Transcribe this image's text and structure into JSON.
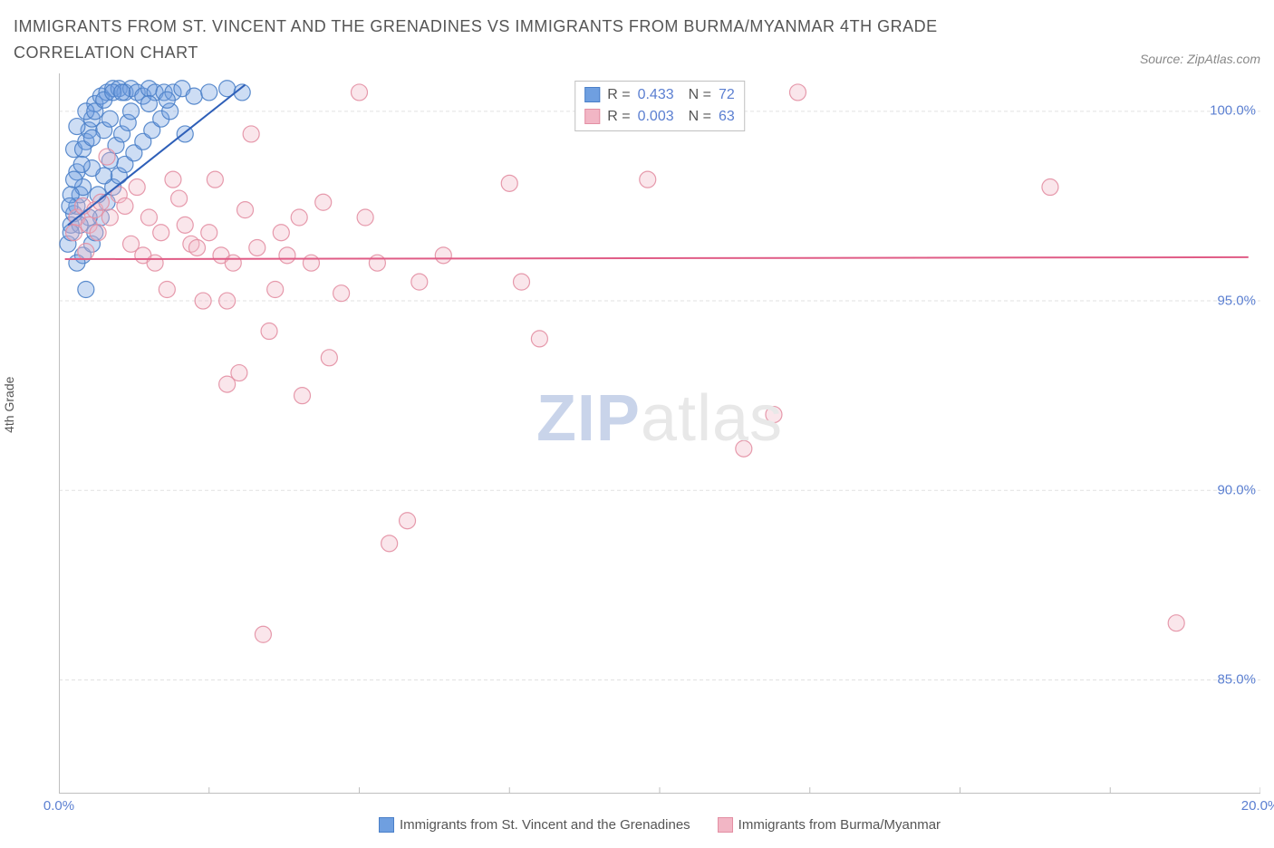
{
  "title": "IMMIGRANTS FROM ST. VINCENT AND THE GRENADINES VS IMMIGRANTS FROM BURMA/MYANMAR 4TH GRADE CORRELATION CHART",
  "source": "Source: ZipAtlas.com",
  "ylabel": "4th Grade",
  "watermark_a": "ZIP",
  "watermark_b": "atlas",
  "chart": {
    "type": "scatter",
    "background_color": "#ffffff",
    "grid_color": "#e2e2e2",
    "axis_color": "#bfbfbf",
    "text_color": "#555555",
    "value_color": "#5b7fd1",
    "xlim": [
      0,
      20
    ],
    "ylim": [
      82,
      101
    ],
    "xticks": [
      0,
      2.5,
      5,
      7.5,
      10,
      12.5,
      15,
      17.5,
      20
    ],
    "xtick_labels": {
      "0": "0.0%",
      "20": "20.0%"
    },
    "yticks": [
      85,
      90,
      95,
      100
    ],
    "ytick_labels": {
      "85": "85.0%",
      "90": "90.0%",
      "95": "95.0%",
      "100": "100.0%"
    },
    "marker_radius": 9,
    "marker_opacity": 0.35,
    "marker_stroke_opacity": 0.9,
    "line_width": 2
  },
  "series": [
    {
      "name": "Immigrants from St. Vincent and the Grenadines",
      "color": "#6f9fe0",
      "stroke": "#4a7fc8",
      "line_color": "#2e5fb8",
      "R": "0.433",
      "N": "72",
      "trend": {
        "x1": 0.15,
        "y1": 97.0,
        "x2": 3.1,
        "y2": 100.7
      },
      "points": [
        [
          0.2,
          97.0
        ],
        [
          0.25,
          97.3
        ],
        [
          0.3,
          97.5
        ],
        [
          0.35,
          97.8
        ],
        [
          0.4,
          98.0
        ],
        [
          0.3,
          98.4
        ],
        [
          0.25,
          99.0
        ],
        [
          0.45,
          99.2
        ],
        [
          0.5,
          99.5
        ],
        [
          0.55,
          99.8
        ],
        [
          0.6,
          100.2
        ],
        [
          0.7,
          100.4
        ],
        [
          0.8,
          100.5
        ],
        [
          0.9,
          100.6
        ],
        [
          1.0,
          100.6
        ],
        [
          1.1,
          100.5
        ],
        [
          1.2,
          100.6
        ],
        [
          1.3,
          100.5
        ],
        [
          1.4,
          100.4
        ],
        [
          1.5,
          100.6
        ],
        [
          1.6,
          100.5
        ],
        [
          1.75,
          100.5
        ],
        [
          1.9,
          100.5
        ],
        [
          2.05,
          100.6
        ],
        [
          2.25,
          100.4
        ],
        [
          2.5,
          100.5
        ],
        [
          2.8,
          100.6
        ],
        [
          3.05,
          100.5
        ],
        [
          0.4,
          96.2
        ],
        [
          0.55,
          96.5
        ],
        [
          0.45,
          95.3
        ],
        [
          0.3,
          96.0
        ],
        [
          0.6,
          96.8
        ],
        [
          0.7,
          97.2
        ],
        [
          0.8,
          97.6
        ],
        [
          0.9,
          98.0
        ],
        [
          1.0,
          98.3
        ],
        [
          1.1,
          98.6
        ],
        [
          1.25,
          98.9
        ],
        [
          1.4,
          99.2
        ],
        [
          1.55,
          99.5
        ],
        [
          1.7,
          99.8
        ],
        [
          1.85,
          100.0
        ],
        [
          0.15,
          96.5
        ],
        [
          0.2,
          97.8
        ],
        [
          0.5,
          97.2
        ],
        [
          0.65,
          97.8
        ],
        [
          0.75,
          98.3
        ],
        [
          0.85,
          98.7
        ],
        [
          0.95,
          99.1
        ],
        [
          1.05,
          99.4
        ],
        [
          1.15,
          99.7
        ],
        [
          0.35,
          97.0
        ],
        [
          0.55,
          98.5
        ],
        [
          0.75,
          99.5
        ],
        [
          0.25,
          98.2
        ],
        [
          0.4,
          99.0
        ],
        [
          0.3,
          99.6
        ],
        [
          0.45,
          100.0
        ],
        [
          0.6,
          100.0
        ],
        [
          0.75,
          100.3
        ],
        [
          0.9,
          100.5
        ],
        [
          1.05,
          100.5
        ],
        [
          0.2,
          96.8
        ],
        [
          0.55,
          99.3
        ],
        [
          0.85,
          99.8
        ],
        [
          1.2,
          100.0
        ],
        [
          1.5,
          100.2
        ],
        [
          1.8,
          100.3
        ],
        [
          2.1,
          99.4
        ],
        [
          0.18,
          97.5
        ],
        [
          0.38,
          98.6
        ]
      ]
    },
    {
      "name": "Immigrants from Burma/Myanmar",
      "color": "#f2b6c5",
      "stroke": "#e38fa3",
      "line_color": "#e05c86",
      "R": "0.003",
      "N": "63",
      "trend": {
        "x1": 0.1,
        "y1": 96.1,
        "x2": 19.8,
        "y2": 96.15
      },
      "points": [
        [
          0.3,
          97.2
        ],
        [
          0.4,
          97.5
        ],
        [
          0.5,
          97.0
        ],
        [
          0.6,
          97.4
        ],
        [
          0.7,
          97.6
        ],
        [
          0.8,
          98.8
        ],
        [
          1.0,
          97.8
        ],
        [
          1.2,
          96.5
        ],
        [
          1.4,
          96.2
        ],
        [
          1.5,
          97.2
        ],
        [
          1.6,
          96.0
        ],
        [
          1.8,
          95.3
        ],
        [
          2.0,
          97.7
        ],
        [
          2.2,
          96.5
        ],
        [
          2.4,
          95.0
        ],
        [
          2.6,
          98.2
        ],
        [
          2.8,
          92.8
        ],
        [
          2.8,
          95.0
        ],
        [
          3.0,
          93.1
        ],
        [
          3.1,
          97.4
        ],
        [
          3.2,
          99.4
        ],
        [
          3.4,
          86.2
        ],
        [
          3.5,
          94.2
        ],
        [
          3.6,
          95.3
        ],
        [
          3.8,
          96.2
        ],
        [
          4.0,
          97.2
        ],
        [
          4.05,
          92.5
        ],
        [
          4.2,
          96.0
        ],
        [
          4.4,
          97.6
        ],
        [
          4.5,
          93.5
        ],
        [
          4.7,
          95.2
        ],
        [
          5.0,
          100.5
        ],
        [
          5.1,
          97.2
        ],
        [
          5.3,
          96.0
        ],
        [
          5.5,
          88.6
        ],
        [
          5.8,
          89.2
        ],
        [
          6.0,
          95.5
        ],
        [
          6.4,
          96.2
        ],
        [
          7.5,
          98.1
        ],
        [
          7.7,
          95.5
        ],
        [
          8.0,
          94.0
        ],
        [
          9.2,
          100.5
        ],
        [
          9.8,
          98.2
        ],
        [
          11.4,
          91.1
        ],
        [
          11.9,
          92.0
        ],
        [
          12.3,
          100.5
        ],
        [
          16.5,
          98.0
        ],
        [
          18.6,
          86.5
        ],
        [
          0.25,
          96.8
        ],
        [
          0.45,
          96.3
        ],
        [
          0.65,
          96.8
        ],
        [
          0.85,
          97.2
        ],
        [
          1.1,
          97.5
        ],
        [
          1.3,
          98.0
        ],
        [
          1.7,
          96.8
        ],
        [
          1.9,
          98.2
        ],
        [
          2.1,
          97.0
        ],
        [
          2.3,
          96.4
        ],
        [
          2.5,
          96.8
        ],
        [
          2.7,
          96.2
        ],
        [
          2.9,
          96.0
        ],
        [
          3.3,
          96.4
        ],
        [
          3.7,
          96.8
        ]
      ]
    }
  ],
  "stat_legend": {
    "r_label": "R =",
    "n_label": "N ="
  },
  "bottom_legend": {
    "label_a": "Immigrants from St. Vincent and the Grenadines",
    "label_b": "Immigrants from Burma/Myanmar"
  }
}
